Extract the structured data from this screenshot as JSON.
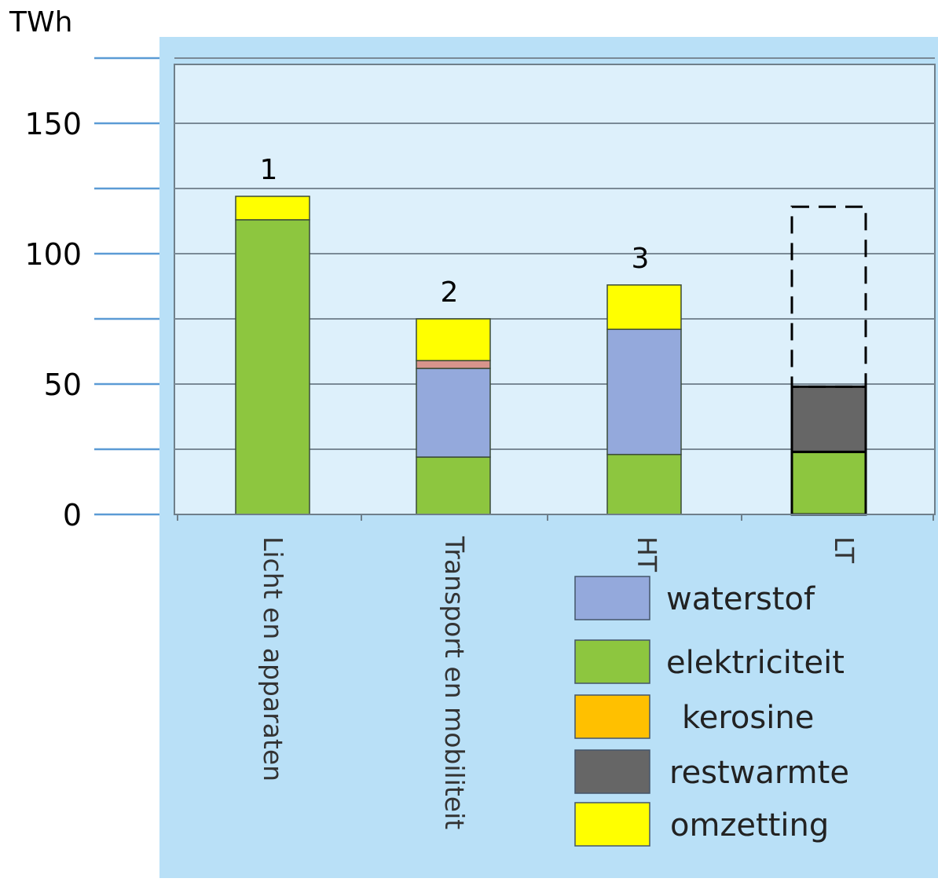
{
  "chart_data": {
    "type": "bar",
    "stacked": true,
    "ylabel": "TWh",
    "ylim": [
      0,
      175
    ],
    "yticks": [
      0,
      50,
      100,
      150
    ],
    "grid": true,
    "legend_position": "bottom-right",
    "categories": [
      "Licht en apparaten",
      "Transport en mobiliteit",
      "HT",
      "LT"
    ],
    "bar_labels": [
      "1",
      "2",
      "3",
      ""
    ],
    "series": [
      {
        "name": "elektriciteit",
        "color": "#8dc63f",
        "values": [
          113,
          22,
          23,
          24
        ]
      },
      {
        "name": "waterstof",
        "color": "#94a9dc",
        "values": [
          0,
          34,
          48,
          0
        ]
      },
      {
        "name": "restwarmte",
        "color": "#666666",
        "values": [
          0,
          0,
          0,
          25
        ]
      },
      {
        "name": "",
        "color": "#d8948c",
        "values": [
          0,
          3,
          0,
          0
        ]
      },
      {
        "name": "omzetting",
        "color": "#ffff00",
        "values": [
          9,
          16,
          17,
          0
        ]
      }
    ],
    "legend": [
      {
        "name": "waterstof",
        "color": "#94a9dc"
      },
      {
        "name": "elektriciteit",
        "color": "#8dc63f"
      },
      {
        "name": "kerosine",
        "color": "#ffc000"
      },
      {
        "name": "restwarmte",
        "color": "#666666"
      },
      {
        "name": "omzetting",
        "color": "#ffff00"
      }
    ],
    "dashed_outline": {
      "category": "LT",
      "from": 49,
      "to": 118
    },
    "colors": {
      "outer_panel": "#b9e0f7",
      "plot_area": "#ddf0fb",
      "gridline": "#7a8a96",
      "tick_line": "#5b9bd5",
      "bar_stroke": "#3a4a3a"
    }
  }
}
